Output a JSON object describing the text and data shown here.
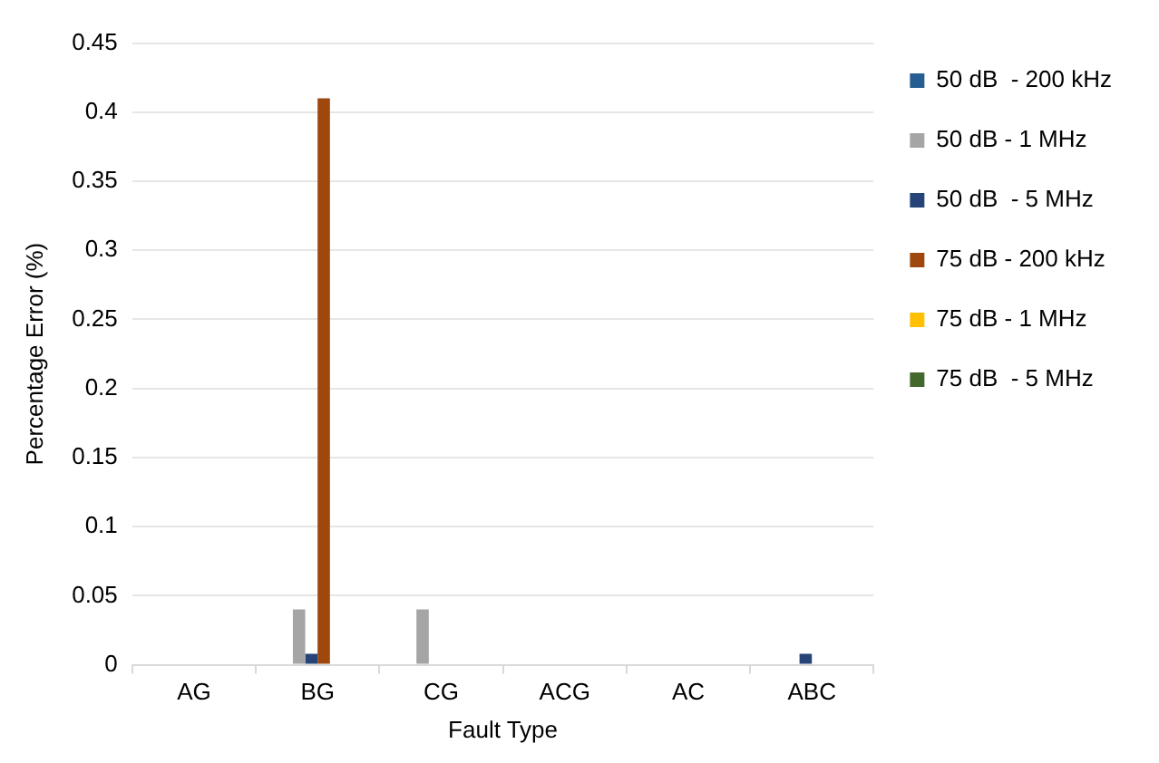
{
  "chart_data": {
    "type": "bar",
    "xlabel": "Fault Type",
    "ylabel": "Percentage Error (%)",
    "categories": [
      "AG",
      "BG",
      "CG",
      "ACG",
      "AC",
      "ABC"
    ],
    "series": [
      {
        "name": "50 dB  - 200 kHz",
        "color": "#255e91",
        "values": [
          0,
          0,
          0,
          0,
          0,
          0
        ]
      },
      {
        "name": "50 dB - 1 MHz",
        "color": "#a5a5a5",
        "values": [
          0,
          0.04,
          0.04,
          0,
          0,
          0
        ]
      },
      {
        "name": "50 dB  - 5 MHz",
        "color": "#264478",
        "values": [
          0,
          0.008,
          0,
          0,
          0,
          0.008
        ]
      },
      {
        "name": "75 dB - 200 kHz",
        "color": "#9e480e",
        "values": [
          0,
          0.41,
          0,
          0,
          0,
          0
        ]
      },
      {
        "name": "75 dB - 1 MHz",
        "color": "#ffc000",
        "values": [
          0,
          0,
          0,
          0,
          0,
          0
        ]
      },
      {
        "name": "75 dB  - 5 MHz",
        "color": "#43682b",
        "values": [
          0,
          0,
          0,
          0,
          0,
          0
        ]
      }
    ],
    "ylim": [
      0,
      0.45
    ],
    "yticks": [
      0,
      0.05,
      0.1,
      0.15,
      0.2,
      0.25,
      0.3,
      0.35,
      0.4,
      0.45
    ],
    "grid": "y",
    "legend": "right"
  }
}
